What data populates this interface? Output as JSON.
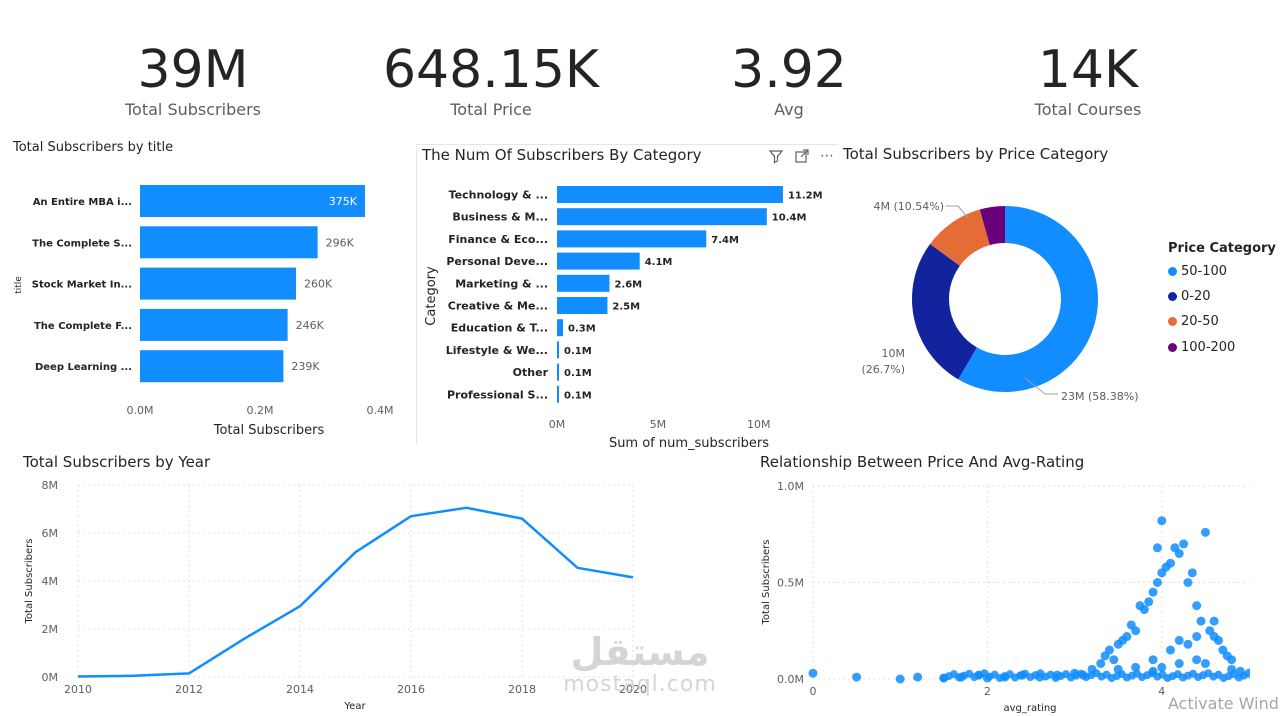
{
  "kpis": [
    {
      "value": "39M",
      "label": "Total Subscribers"
    },
    {
      "value": "648.15K",
      "label": "Total Price"
    },
    {
      "value": "3.92",
      "label": "Avg"
    },
    {
      "value": "14K",
      "label": "Total Courses"
    }
  ],
  "toolbar": {
    "filter_icon": "funnel-icon",
    "focus_icon": "expand-icon",
    "more": "⋯"
  },
  "watermark": {
    "arabic": "مستقل",
    "latin": "mostaql.com"
  },
  "activate_text": "Activate Wind",
  "colors": {
    "blue": "#118DFF",
    "navy": "#12239E",
    "orange": "#E66C37",
    "purple": "#6B007B"
  },
  "chart_data": [
    {
      "type": "bar",
      "orientation": "horizontal",
      "title": "Total Subscribers by title",
      "xlabel": "Total Subscribers",
      "ylabel": "title",
      "categories": [
        "An Entire MBA i...",
        "The Complete S...",
        "Stock Market In...",
        "The Complete F...",
        "Deep Learning ..."
      ],
      "values": [
        375000,
        296000,
        260000,
        246000,
        239000
      ],
      "data_labels": [
        "375K",
        "296K",
        "260K",
        "246K",
        "239K"
      ],
      "xticks": [
        "0.0M",
        "0.2M",
        "0.4M"
      ],
      "xlim": [
        0,
        400000
      ]
    },
    {
      "type": "bar",
      "orientation": "horizontal",
      "title": "The Num Of Subscribers By Category",
      "xlabel": "Sum of num_subscribers",
      "ylabel": "Category",
      "categories": [
        "Technology & ...",
        "Business & M...",
        "Finance & Eco...",
        "Personal Deve...",
        "Marketing & ...",
        "Creative & Me...",
        "Education & T...",
        "Lifestyle & We...",
        "Other",
        "Professional S..."
      ],
      "values": [
        11.2,
        10.4,
        7.4,
        4.1,
        2.6,
        2.5,
        0.3,
        0.1,
        0.1,
        0.1
      ],
      "data_labels": [
        "11.2M",
        "10.4M",
        "7.4M",
        "4.1M",
        "2.6M",
        "2.5M",
        "0.3M",
        "0.1M",
        "0.1M",
        "0.1M"
      ],
      "xticks": [
        "0M",
        "5M",
        "10M"
      ],
      "xlim": [
        0,
        11.5
      ]
    },
    {
      "type": "pie",
      "title": "Total Subscribers by Price Category",
      "legend_title": "Price Category",
      "slices": [
        {
          "name": "50-100",
          "value": 23,
          "label": "23M (58.38%)",
          "pct": 58.38
        },
        {
          "name": "0-20",
          "value": 10,
          "label": "10M (26.7%)",
          "label_line1": "10M",
          "label_line2": "(26.7%)",
          "pct": 26.7
        },
        {
          "name": "20-50",
          "value": 4,
          "label": "4M (10.54%)",
          "pct": 10.54
        },
        {
          "name": "100-200",
          "value": 1.5,
          "label": "",
          "pct": 4.38
        }
      ]
    },
    {
      "type": "line",
      "title": "Total Subscribers by Year",
      "xlabel": "Year",
      "ylabel": "Total Subscribers",
      "x": [
        2010,
        2011,
        2012,
        2013,
        2014,
        2015,
        2016,
        2017,
        2018,
        2019,
        2020
      ],
      "y": [
        0.02,
        0.05,
        0.15,
        1.6,
        2.95,
        5.2,
        6.7,
        7.05,
        6.6,
        4.55,
        4.15
      ],
      "xticks": [
        "2010",
        "2012",
        "2014",
        "2016",
        "2018",
        "2020"
      ],
      "yticks": [
        "0M",
        "2M",
        "4M",
        "6M",
        "8M"
      ],
      "xlim": [
        2010,
        2020
      ],
      "ylim": [
        0,
        8
      ]
    },
    {
      "type": "scatter",
      "title": "Relationship Between Price And Avg-Rating",
      "xlabel": "avg_rating",
      "ylabel": "Total Subscribers",
      "xticks": [
        "0",
        "2",
        "4"
      ],
      "yticks": [
        "0.0M",
        "0.5M",
        "1.0M"
      ],
      "xlim": [
        0,
        5
      ],
      "ylim": [
        0,
        1.0
      ],
      "points": [
        [
          0,
          0.03
        ],
        [
          0.5,
          0.01
        ],
        [
          1.0,
          0.0
        ],
        [
          1.2,
          0.01
        ],
        [
          1.5,
          0.005
        ],
        [
          1.7,
          0.01
        ],
        [
          1.9,
          0.02
        ],
        [
          2.0,
          0.005
        ],
        [
          2.2,
          0.01
        ],
        [
          2.4,
          0.02
        ],
        [
          2.6,
          0.01
        ],
        [
          2.8,
          0.02
        ],
        [
          3.0,
          0.03
        ],
        [
          3.1,
          0.02
        ],
        [
          3.2,
          0.05
        ],
        [
          3.3,
          0.08
        ],
        [
          3.35,
          0.12
        ],
        [
          3.4,
          0.15
        ],
        [
          3.45,
          0.1
        ],
        [
          3.5,
          0.18
        ],
        [
          3.55,
          0.2
        ],
        [
          3.6,
          0.22
        ],
        [
          3.65,
          0.28
        ],
        [
          3.7,
          0.25
        ],
        [
          3.75,
          0.38
        ],
        [
          3.8,
          0.36
        ],
        [
          3.85,
          0.4
        ],
        [
          3.9,
          0.45
        ],
        [
          3.95,
          0.5
        ],
        [
          4.0,
          0.55
        ],
        [
          4.05,
          0.58
        ],
        [
          4.1,
          0.6
        ],
        [
          4.15,
          0.68
        ],
        [
          4.2,
          0.65
        ],
        [
          4.25,
          0.7
        ],
        [
          3.95,
          0.68
        ],
        [
          4.0,
          0.82
        ],
        [
          4.3,
          0.5
        ],
        [
          4.35,
          0.55
        ],
        [
          4.4,
          0.38
        ],
        [
          4.5,
          0.76
        ],
        [
          4.45,
          0.3
        ],
        [
          4.55,
          0.25
        ],
        [
          4.6,
          0.22
        ],
        [
          4.65,
          0.2
        ],
        [
          4.7,
          0.15
        ],
        [
          4.75,
          0.12
        ],
        [
          4.8,
          0.1
        ],
        [
          4.5,
          0.08
        ],
        [
          4.2,
          0.2
        ],
        [
          4.3,
          0.18
        ],
        [
          4.1,
          0.15
        ],
        [
          3.9,
          0.1
        ],
        [
          4.6,
          0.3
        ],
        [
          4.4,
          0.22
        ],
        [
          4.8,
          0.05
        ],
        [
          4.9,
          0.04
        ],
        [
          5.0,
          0.03
        ],
        [
          3.5,
          0.05
        ],
        [
          3.7,
          0.06
        ],
        [
          3.9,
          0.04
        ],
        [
          4.0,
          0.06
        ],
        [
          4.2,
          0.08
        ],
        [
          4.4,
          0.1
        ]
      ]
    }
  ]
}
